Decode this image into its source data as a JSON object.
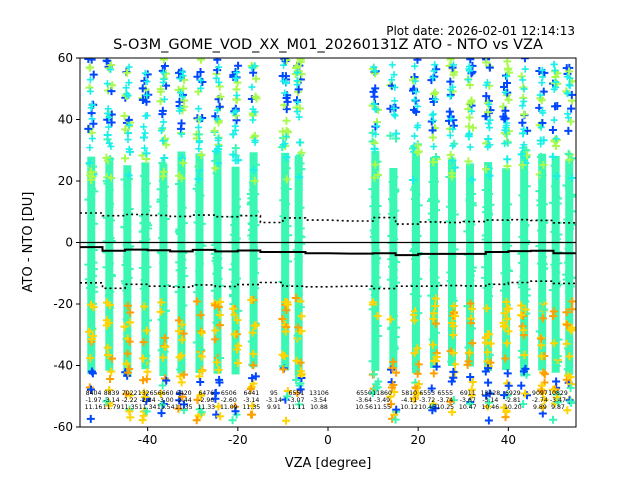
{
  "plot_date": "Plot date: 2026-02-01 12:14:13",
  "chart_data": {
    "type": "scatter",
    "title": "S-O3M_GOME_VOD_XX_M01_20260131Z ATO - NTO vs VZA",
    "xlabel": "VZA [degree]",
    "ylabel": "ATO - NTO [DU]",
    "xlim": [
      -55,
      55
    ],
    "ylim": [
      -60,
      60
    ],
    "x_ticks": [
      -40,
      -20,
      0,
      20,
      40
    ],
    "y_ticks": [
      -60,
      -40,
      -20,
      0,
      20,
      40,
      60
    ],
    "columns_x": [
      -52.5,
      -48.5,
      -44.5,
      -40.5,
      -36.5,
      -32.5,
      -28.5,
      -24.5,
      -20.5,
      -16.5,
      -9.5,
      -6.5,
      10.5,
      14.5,
      19.5,
      23.5,
      27.5,
      31.5,
      35.5,
      39.5,
      43.5,
      47.5,
      50.5,
      53.5
    ],
    "bins": [
      {
        "x": -52,
        "count": "8404",
        "mean": "-1.97",
        "std": "11.16"
      },
      {
        "x": -48,
        "count": "8839",
        "mean": "-3.14",
        "std": "11.79"
      },
      {
        "x": -44,
        "count": "7022",
        "mean": "-2.22",
        "std": "11.35"
      },
      {
        "x": -40,
        "count": "13265",
        "mean": "-2.84",
        "std": "11.34"
      },
      {
        "x": -36,
        "count": "6660",
        "mean": "-3.00",
        "std": "11.54"
      },
      {
        "x": -32,
        "count": "6420",
        "mean": "-2.44",
        "std": "11.35"
      },
      {
        "x": -27,
        "count": "6476",
        "mean": "-2.96",
        "std": "11.33"
      },
      {
        "x": -22,
        "count": "6506",
        "mean": "-2.60",
        "std": "11.09"
      },
      {
        "x": -17,
        "count": "6441",
        "mean": "-3.14",
        "std": "11.35"
      },
      {
        "x": -12,
        "count": "95",
        "mean": "-3.14",
        "std": "9.91"
      },
      {
        "x": -7,
        "count": "6551",
        "mean": "-3.07",
        "std": "11.11"
      },
      {
        "x": -2,
        "count": "13106",
        "mean": "-3.54",
        "std": "10.88"
      },
      {
        "x": 8,
        "count": "6550",
        "mean": "-3.64",
        "std": "10.56"
      },
      {
        "x": 12,
        "count": "11860",
        "mean": "-3.49",
        "std": "11.55"
      },
      {
        "x": 18,
        "count": "5810",
        "mean": "-4.11",
        "std": "10.12"
      },
      {
        "x": 22,
        "count": "6553",
        "mean": "-3.72",
        "std": "10.45"
      },
      {
        "x": 26,
        "count": "6555",
        "mean": "-3.74",
        "std": "10.25"
      },
      {
        "x": 31,
        "count": "6911",
        "mean": "-3.67",
        "std": "10.47"
      },
      {
        "x": 36,
        "count": "13428",
        "mean": "-3.14",
        "std": "10.46"
      },
      {
        "x": 41,
        "count": "6929",
        "mean": "-2.81",
        "std": "10.20"
      },
      {
        "x": 47,
        "count": "9097",
        "mean": "-2.74",
        "std": "9.89"
      },
      {
        "x": 51,
        "count": "10829",
        "mean": "-3.47",
        "std": "9.87"
      }
    ],
    "mean_line": [
      [
        -55,
        -1.5
      ],
      [
        -50,
        -1.5
      ],
      [
        -50,
        -2.7
      ],
      [
        -45,
        -2.7
      ],
      [
        -45,
        -2.3
      ],
      [
        -40,
        -2.3
      ],
      [
        -40,
        -2.5
      ],
      [
        -35,
        -2.5
      ],
      [
        -35,
        -2.9
      ],
      [
        -30,
        -2.9
      ],
      [
        -30,
        -2.4
      ],
      [
        -25,
        -2.4
      ],
      [
        -25,
        -2.9
      ],
      [
        -20,
        -2.9
      ],
      [
        -20,
        -2.6
      ],
      [
        -15,
        -2.6
      ],
      [
        -15,
        -3.1
      ],
      [
        -10,
        -3.1
      ],
      [
        -10,
        -3.1
      ],
      [
        -5,
        -3.1
      ],
      [
        -5,
        -3.5
      ],
      [
        0,
        -3.5
      ],
      [
        5,
        -3.6
      ],
      [
        10,
        -3.6
      ],
      [
        10,
        -3.5
      ],
      [
        15,
        -3.5
      ],
      [
        15,
        -4.1
      ],
      [
        20,
        -4.1
      ],
      [
        20,
        -3.7
      ],
      [
        25,
        -3.7
      ],
      [
        25,
        -3.7
      ],
      [
        30,
        -3.7
      ],
      [
        30,
        -3.7
      ],
      [
        35,
        -3.7
      ],
      [
        35,
        -3.1
      ],
      [
        40,
        -3.1
      ],
      [
        40,
        -2.8
      ],
      [
        45,
        -2.8
      ],
      [
        45,
        -2.7
      ],
      [
        50,
        -2.7
      ],
      [
        50,
        -3.5
      ],
      [
        55,
        -3.5
      ]
    ],
    "upper_std_line": [
      [
        -55,
        9.6
      ],
      [
        -50,
        9.6
      ],
      [
        -50,
        8.7
      ],
      [
        -45,
        8.7
      ],
      [
        -45,
        9.1
      ],
      [
        -40,
        9.1
      ],
      [
        -40,
        8.8
      ],
      [
        -35,
        8.8
      ],
      [
        -35,
        8.5
      ],
      [
        -30,
        8.5
      ],
      [
        -30,
        8.9
      ],
      [
        -25,
        8.9
      ],
      [
        -25,
        8.4
      ],
      [
        -20,
        8.4
      ],
      [
        -20,
        8.7
      ],
      [
        -15,
        8.7
      ],
      [
        -15,
        6.5
      ],
      [
        -10,
        6.5
      ],
      [
        -10,
        8.0
      ],
      [
        -5,
        8.0
      ],
      [
        -5,
        7.3
      ],
      [
        0,
        7.3
      ],
      [
        5,
        7.0
      ],
      [
        10,
        7.0
      ],
      [
        10,
        8.1
      ],
      [
        15,
        8.1
      ],
      [
        15,
        6.0
      ],
      [
        20,
        6.0
      ],
      [
        20,
        6.7
      ],
      [
        25,
        6.7
      ],
      [
        25,
        6.5
      ],
      [
        30,
        6.5
      ],
      [
        30,
        6.8
      ],
      [
        35,
        6.8
      ],
      [
        35,
        7.3
      ],
      [
        40,
        7.3
      ],
      [
        40,
        7.4
      ],
      [
        45,
        7.4
      ],
      [
        45,
        7.2
      ],
      [
        50,
        7.2
      ],
      [
        50,
        6.4
      ],
      [
        55,
        6.4
      ]
    ],
    "lower_std_line": [
      [
        -55,
        -13.1
      ],
      [
        -50,
        -13.1
      ],
      [
        -50,
        -14.9
      ],
      [
        -45,
        -14.9
      ],
      [
        -45,
        -13.6
      ],
      [
        -40,
        -13.6
      ],
      [
        -40,
        -14.2
      ],
      [
        -35,
        -14.2
      ],
      [
        -35,
        -14.5
      ],
      [
        -30,
        -14.5
      ],
      [
        -30,
        -13.8
      ],
      [
        -25,
        -13.8
      ],
      [
        -25,
        -14.3
      ],
      [
        -20,
        -14.3
      ],
      [
        -20,
        -13.7
      ],
      [
        -15,
        -13.7
      ],
      [
        -15,
        -13.0
      ],
      [
        -10,
        -13.0
      ],
      [
        -10,
        -14.2
      ],
      [
        -5,
        -14.2
      ],
      [
        -5,
        -14.4
      ],
      [
        0,
        -14.4
      ],
      [
        5,
        -14.2
      ],
      [
        10,
        -14.2
      ],
      [
        10,
        -15.0
      ],
      [
        15,
        -15.0
      ],
      [
        15,
        -14.2
      ],
      [
        20,
        -14.2
      ],
      [
        20,
        -14.2
      ],
      [
        25,
        -14.2
      ],
      [
        25,
        -14.0
      ],
      [
        30,
        -14.0
      ],
      [
        30,
        -14.1
      ],
      [
        35,
        -14.1
      ],
      [
        35,
        -13.6
      ],
      [
        40,
        -13.6
      ],
      [
        40,
        -13.0
      ],
      [
        45,
        -13.0
      ],
      [
        45,
        -12.6
      ],
      [
        50,
        -12.6
      ],
      [
        50,
        -13.3
      ],
      [
        55,
        -13.3
      ]
    ],
    "colors": {
      "core": "#3af7b4",
      "cyan": "#18f0e8",
      "lime": "#a8fa4e",
      "yellow": "#ffd400",
      "orange": "#ff9f00",
      "blue": "#0046ff",
      "navy": "#1020e0",
      "mean_line": "#000000"
    }
  }
}
